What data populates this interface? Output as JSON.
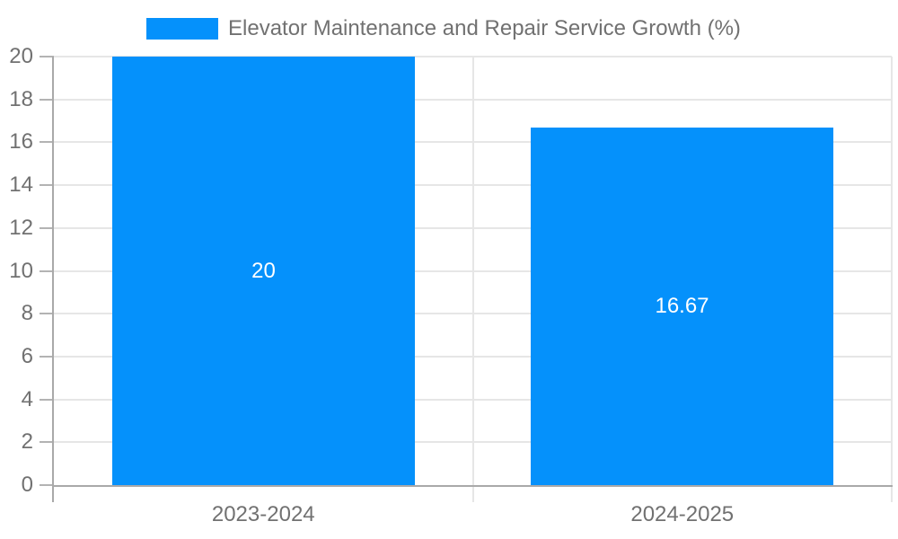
{
  "chart_data": {
    "type": "bar",
    "title": "Elevator Maintenance and Repair Service Growth (%)",
    "legend": {
      "label": "Elevator Maintenance and Repair Service Growth (%)",
      "position": "top"
    },
    "categories": [
      "2023-2024",
      "2024-2025"
    ],
    "series": [
      {
        "name": "Elevator Maintenance and Repair Service Growth (%)",
        "values": [
          20,
          16.67
        ],
        "color": "#0591FB"
      }
    ],
    "value_labels": [
      "20",
      "16.67"
    ],
    "xlabel": "",
    "ylabel": "",
    "ylim": [
      0,
      20
    ],
    "ytick_step": 2,
    "grid": true,
    "colors": {
      "bar": "#0591FB",
      "grid": "#e6e6e6",
      "axis": "#a9a9a9",
      "tick": "#b3b3b3",
      "text": "#717171",
      "value_label": "#ffffff",
      "background": "#ffffff"
    }
  }
}
